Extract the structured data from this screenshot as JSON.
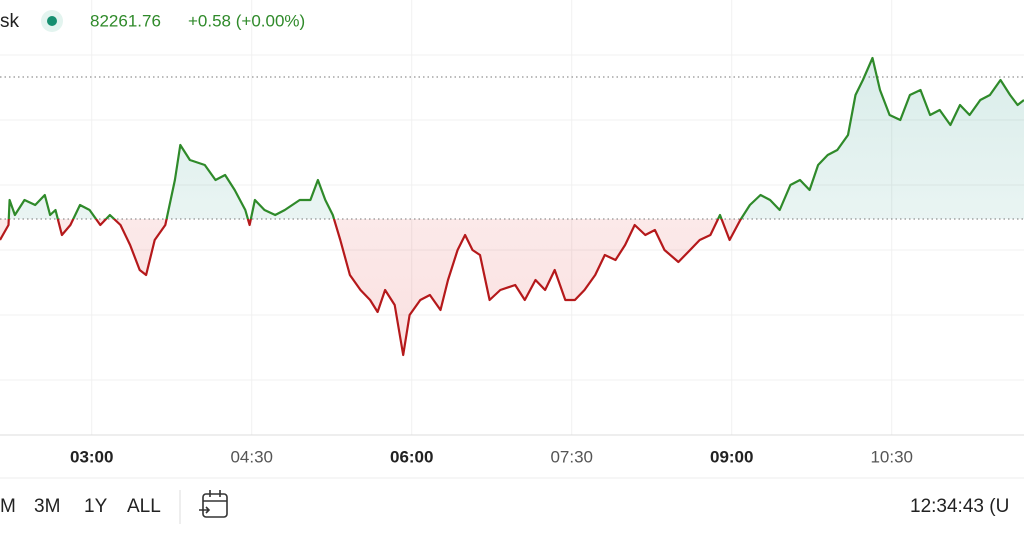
{
  "header": {
    "symbol": "sk",
    "price": "82261.76",
    "change": "+0.58 (+0.00%)"
  },
  "chart_data": {
    "type": "line",
    "x": [
      2.14,
      2.22,
      2.23,
      2.28,
      2.37,
      2.47,
      2.56,
      2.61,
      2.66,
      2.72,
      2.8,
      2.89,
      2.98,
      3.08,
      3.17,
      3.27,
      3.36,
      3.45,
      3.51,
      3.59,
      3.69,
      3.78,
      3.83,
      3.92,
      4.06,
      4.16,
      4.25,
      4.34,
      4.44,
      4.48,
      4.53,
      4.62,
      4.72,
      4.81,
      4.95,
      5.05,
      5.12,
      5.19,
      5.26,
      5.33,
      5.42,
      5.52,
      5.61,
      5.68,
      5.75,
      5.84,
      5.92,
      5.98,
      6.08,
      6.17,
      6.27,
      6.34,
      6.43,
      6.5,
      6.57,
      6.64,
      6.73,
      6.83,
      6.97,
      7.06,
      7.16,
      7.25,
      7.34,
      7.44,
      7.53,
      7.62,
      7.72,
      7.81,
      7.91,
      8.0,
      8.09,
      8.19,
      8.28,
      8.37,
      8.5,
      8.61,
      8.7,
      8.8,
      8.89,
      8.98,
      9.08,
      9.17,
      9.27,
      9.36,
      9.45,
      9.55,
      9.64,
      9.73,
      9.81,
      9.9,
      9.99,
      10.09,
      10.16,
      10.23,
      10.32,
      10.39,
      10.48,
      10.58,
      10.67,
      10.77,
      10.86,
      10.95,
      11.05,
      11.14,
      11.23,
      11.33,
      11.42,
      11.52,
      11.61,
      11.68,
      11.74
    ],
    "values": [
      195,
      210,
      235,
      220,
      235,
      230,
      240,
      220,
      225,
      200,
      210,
      230,
      225,
      210,
      220,
      210,
      190,
      165,
      160,
      195,
      210,
      255,
      290,
      275,
      270,
      255,
      260,
      245,
      225,
      210,
      235,
      225,
      220,
      225,
      235,
      235,
      255,
      235,
      220,
      195,
      160,
      145,
      135,
      123,
      145,
      130,
      80,
      120,
      135,
      140,
      125,
      155,
      185,
      200,
      185,
      180,
      135,
      145,
      150,
      135,
      155,
      145,
      165,
      135,
      135,
      145,
      160,
      180,
      175,
      190,
      210,
      200,
      205,
      185,
      173,
      185,
      195,
      200,
      220,
      195,
      215,
      230,
      240,
      235,
      225,
      250,
      255,
      245,
      270,
      280,
      285,
      300,
      340,
      355,
      377,
      345,
      320,
      315,
      340,
      345,
      320,
      325,
      310,
      330,
      320,
      335,
      340,
      355,
      340,
      330,
      335
    ],
    "color_up": "#2f8a2a",
    "color_down": "#b5191b",
    "baseline": 216,
    "high_line": 358,
    "xlim": [
      2.14,
      11.74
    ],
    "ylim": [
      0,
      435
    ],
    "xticks": [
      {
        "value": 3,
        "label": "03:00"
      },
      {
        "value": 4.5,
        "label": "04:30"
      },
      {
        "value": 6,
        "label": "06:00"
      },
      {
        "value": 7.5,
        "label": "07:30"
      },
      {
        "value": 9,
        "label": "09:00"
      },
      {
        "value": 10.5,
        "label": "10:30"
      }
    ],
    "yticks": [
      55,
      120,
      185,
      250,
      315,
      380
    ],
    "grid": true
  },
  "toolbar": {
    "ranges": [
      "M",
      "3M",
      "1Y",
      "ALL"
    ],
    "clock": "12:34:43 (U"
  }
}
